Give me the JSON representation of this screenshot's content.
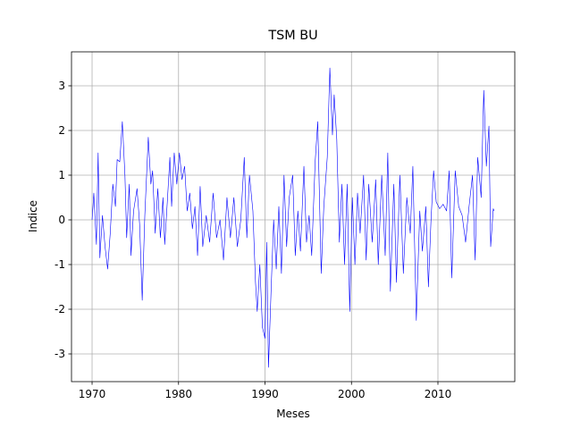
{
  "chart_data": {
    "type": "line",
    "title": "TSM BU",
    "xlabel": "Meses",
    "ylabel": "Indice",
    "x": [
      1970.0,
      1970.2,
      1970.5,
      1970.7,
      1970.9,
      1971.2,
      1971.5,
      1971.8,
      1972.1,
      1972.4,
      1972.7,
      1972.9,
      1973.2,
      1973.5,
      1973.8,
      1974.0,
      1974.3,
      1974.5,
      1974.8,
      1975.2,
      1975.5,
      1975.8,
      1976.1,
      1976.5,
      1976.8,
      1977.0,
      1977.3,
      1977.6,
      1977.9,
      1978.2,
      1978.4,
      1978.7,
      1979.0,
      1979.2,
      1979.5,
      1979.8,
      1980.1,
      1980.4,
      1980.7,
      1981.0,
      1981.3,
      1981.6,
      1981.9,
      1982.2,
      1982.5,
      1982.8,
      1983.2,
      1983.6,
      1984.0,
      1984.4,
      1984.8,
      1985.2,
      1985.6,
      1986.0,
      1986.4,
      1986.8,
      1987.2,
      1987.6,
      1987.9,
      1988.2,
      1988.6,
      1988.9,
      1989.1,
      1989.4,
      1989.7,
      1990.0,
      1990.2,
      1990.4,
      1990.7,
      1991.0,
      1991.3,
      1991.6,
      1991.9,
      1992.2,
      1992.5,
      1992.8,
      1993.2,
      1993.5,
      1993.8,
      1994.1,
      1994.5,
      1994.8,
      1995.1,
      1995.4,
      1995.8,
      1996.1,
      1996.5,
      1996.8,
      1997.2,
      1997.5,
      1997.8,
      1998.0,
      1998.3,
      1998.6,
      1998.9,
      1999.2,
      1999.5,
      1999.8,
      2000.1,
      2000.4,
      2000.7,
      2001.0,
      2001.4,
      2001.7,
      2002.0,
      2002.4,
      2002.8,
      2003.1,
      2003.5,
      2003.9,
      2004.2,
      2004.5,
      2004.9,
      2005.2,
      2005.6,
      2006.0,
      2006.4,
      2006.8,
      2007.1,
      2007.5,
      2007.9,
      2008.2,
      2008.6,
      2008.9,
      2009.2,
      2009.5,
      2009.8,
      2010.2,
      2010.6,
      2011.0,
      2011.3,
      2011.6,
      2012.0,
      2012.4,
      2012.8,
      2013.2,
      2013.6,
      2014.0,
      2014.3,
      2014.6,
      2015.0,
      2015.3,
      2015.6,
      2015.9,
      2016.1,
      2016.4,
      2016.5
    ],
    "series": [
      {
        "name": "TSM BU",
        "color": "#0000ff",
        "values": [
          0.0,
          0.6,
          -0.55,
          1.5,
          -0.85,
          0.1,
          -0.6,
          -1.1,
          -0.3,
          0.8,
          0.3,
          1.35,
          1.3,
          2.2,
          1.0,
          -0.4,
          0.8,
          -0.8,
          0.2,
          0.7,
          -0.1,
          -1.8,
          0.1,
          1.85,
          0.8,
          1.1,
          -0.3,
          0.7,
          -0.4,
          0.5,
          -0.55,
          0.4,
          1.4,
          0.3,
          1.5,
          0.8,
          1.5,
          0.9,
          1.2,
          0.2,
          0.6,
          -0.2,
          0.3,
          -0.8,
          0.75,
          -0.6,
          0.1,
          -0.5,
          0.6,
          -0.4,
          0.0,
          -0.9,
          0.5,
          -0.4,
          0.5,
          -0.6,
          0.0,
          1.4,
          -0.4,
          1.0,
          0.2,
          -1.4,
          -2.05,
          -1.0,
          -2.4,
          -2.65,
          -0.5,
          -3.3,
          -1.6,
          0.0,
          -1.1,
          0.3,
          -1.2,
          1.0,
          -0.6,
          0.5,
          1.0,
          -0.8,
          0.2,
          -0.7,
          1.2,
          -0.5,
          0.1,
          -0.8,
          1.3,
          2.2,
          -1.2,
          0.3,
          1.4,
          3.4,
          1.9,
          2.8,
          1.8,
          -0.5,
          0.8,
          -1.0,
          0.8,
          -2.05,
          0.5,
          -1.0,
          0.6,
          -0.3,
          1.0,
          -0.9,
          0.8,
          -0.5,
          0.9,
          -1.0,
          1.0,
          -0.8,
          1.5,
          -1.6,
          0.8,
          -1.4,
          1.0,
          -1.2,
          0.5,
          -0.3,
          1.2,
          -2.25,
          0.2,
          -0.7,
          0.3,
          -1.5,
          0.0,
          1.1,
          0.4,
          0.25,
          0.35,
          0.2,
          1.1,
          -1.3,
          1.1,
          0.3,
          0.1,
          -0.5,
          0.3,
          1.0,
          -0.9,
          1.4,
          0.5,
          2.9,
          1.2,
          2.1,
          -0.6,
          0.25,
          0.2
        ]
      }
    ],
    "xlim": [
      1967.62,
      2018.89
    ],
    "ylim": [
      -3.62,
      3.76
    ],
    "xticks": [
      1970,
      1980,
      1990,
      2000,
      2010
    ],
    "yticks": [
      -3,
      -2,
      -1,
      0,
      1,
      2,
      3
    ],
    "grid": true
  }
}
